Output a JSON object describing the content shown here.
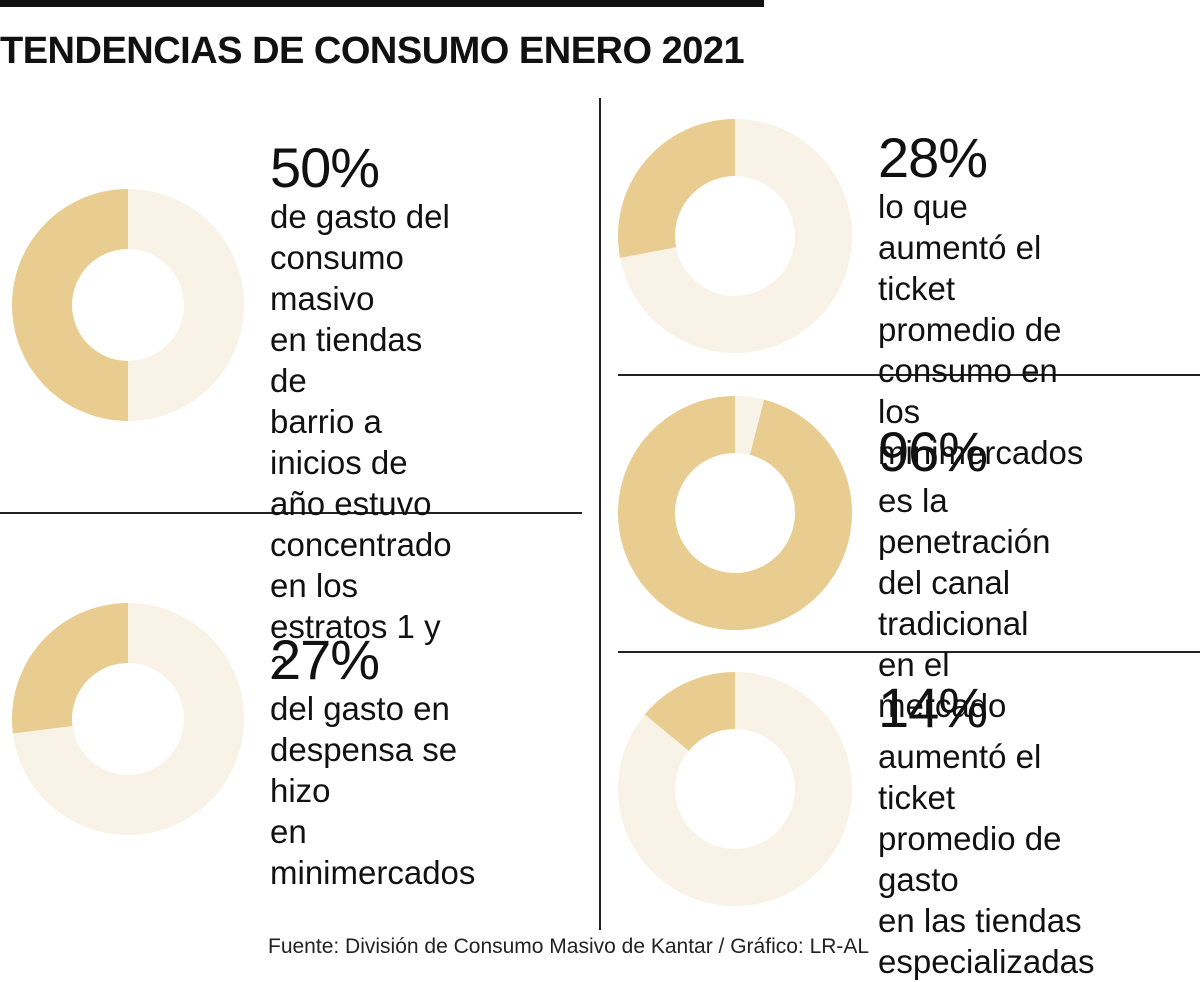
{
  "title": "TENDENCIAS DE CONSUMO ENERO 2021",
  "source": "Fuente: División de Consumo Masivo de Kantar / Gráfico: LR-AL",
  "colors": {
    "highlight": "#E8CC90",
    "remainder": "#F8F2E7",
    "text": "#111111",
    "rule": "#222222"
  },
  "chart_data": [
    {
      "type": "pie",
      "value_percent": 50,
      "label": "50%",
      "description": "de gasto del\nconsumo masivo\nen tiendas de\nbarrio a inicios de\naño estuvo\nconcentrado en los\nestratos 1 y 2"
    },
    {
      "type": "pie",
      "value_percent": 27,
      "label": "27%",
      "description": "del gasto en\ndespensa se hizo\nen minimercados"
    },
    {
      "type": "pie",
      "value_percent": 28,
      "label": "28%",
      "description": "lo que aumentó el\nticket promedio de\nconsumo en los\nminimercados"
    },
    {
      "type": "pie",
      "value_percent": 96,
      "label": "96%",
      "description": "es la penetración\ndel canal tradicional\nen el mercado"
    },
    {
      "type": "pie",
      "value_percent": 14,
      "label": "14%",
      "description": "aumentó el ticket\npromedio de gasto\nen las tiendas\nespecializadas"
    }
  ]
}
